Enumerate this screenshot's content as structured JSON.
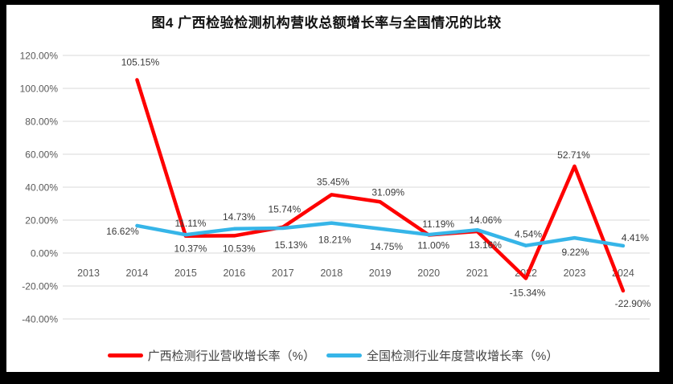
{
  "page": {
    "title": "图4 广西检验检测机构营收总额增长率与全国情况的比较"
  },
  "chart_data": {
    "type": "line",
    "title": "图4 广西检验检测机构营收总额增长率与全国情况的比较",
    "categories": [
      "2013",
      "2014",
      "2015",
      "2016",
      "2017",
      "2018",
      "2019",
      "2020",
      "2021",
      "2022",
      "2023",
      "2024"
    ],
    "y_ticks": [
      "120.00%",
      "100.00%",
      "80.00%",
      "60.00%",
      "40.00%",
      "20.00%",
      "0.00%",
      "-20.00%",
      "-40.00%"
    ],
    "ylim": [
      -40,
      120
    ],
    "grid": true,
    "legend_position": "bottom",
    "value_suffix": "%",
    "series": [
      {
        "name": "广西检测行业营收增长率（%）",
        "color": "#fe0000",
        "values": [
          null,
          105.15,
          10.37,
          10.53,
          15.74,
          35.45,
          31.09,
          11.0,
          13.16,
          -15.34,
          52.71,
          -22.9
        ],
        "label_offsets": [
          null,
          [
            4,
            -18
          ],
          [
            6,
            20
          ],
          [
            6,
            20
          ],
          [
            2,
            -18
          ],
          [
            2,
            -12
          ],
          [
            10,
            -8
          ],
          [
            6,
            17
          ],
          [
            10,
            21
          ],
          [
            2,
            22
          ],
          [
            -1,
            -10
          ],
          [
            12,
            20
          ]
        ]
      },
      {
        "name": "全国检测行业年度营收增长率（%）",
        "color": "#36b5e8",
        "values": [
          null,
          16.62,
          11.11,
          14.73,
          15.13,
          18.21,
          14.75,
          11.19,
          14.06,
          4.54,
          9.22,
          4.41
        ],
        "label_offsets": [
          null,
          [
            -18,
            11
          ],
          [
            6,
            -10
          ],
          [
            6,
            -11
          ],
          [
            10,
            25
          ],
          [
            4,
            25
          ],
          [
            8,
            26
          ],
          [
            12,
            -9
          ],
          [
            10,
            -8
          ],
          [
            3,
            -10
          ],
          [
            1,
            22
          ],
          [
            15,
            -6
          ]
        ]
      }
    ],
    "colors": {
      "grid": "#d8d8d8",
      "axis_label": "#595959",
      "data_label": "#3a3a3a",
      "background": "#ffffff",
      "page_border": "#000000"
    }
  }
}
